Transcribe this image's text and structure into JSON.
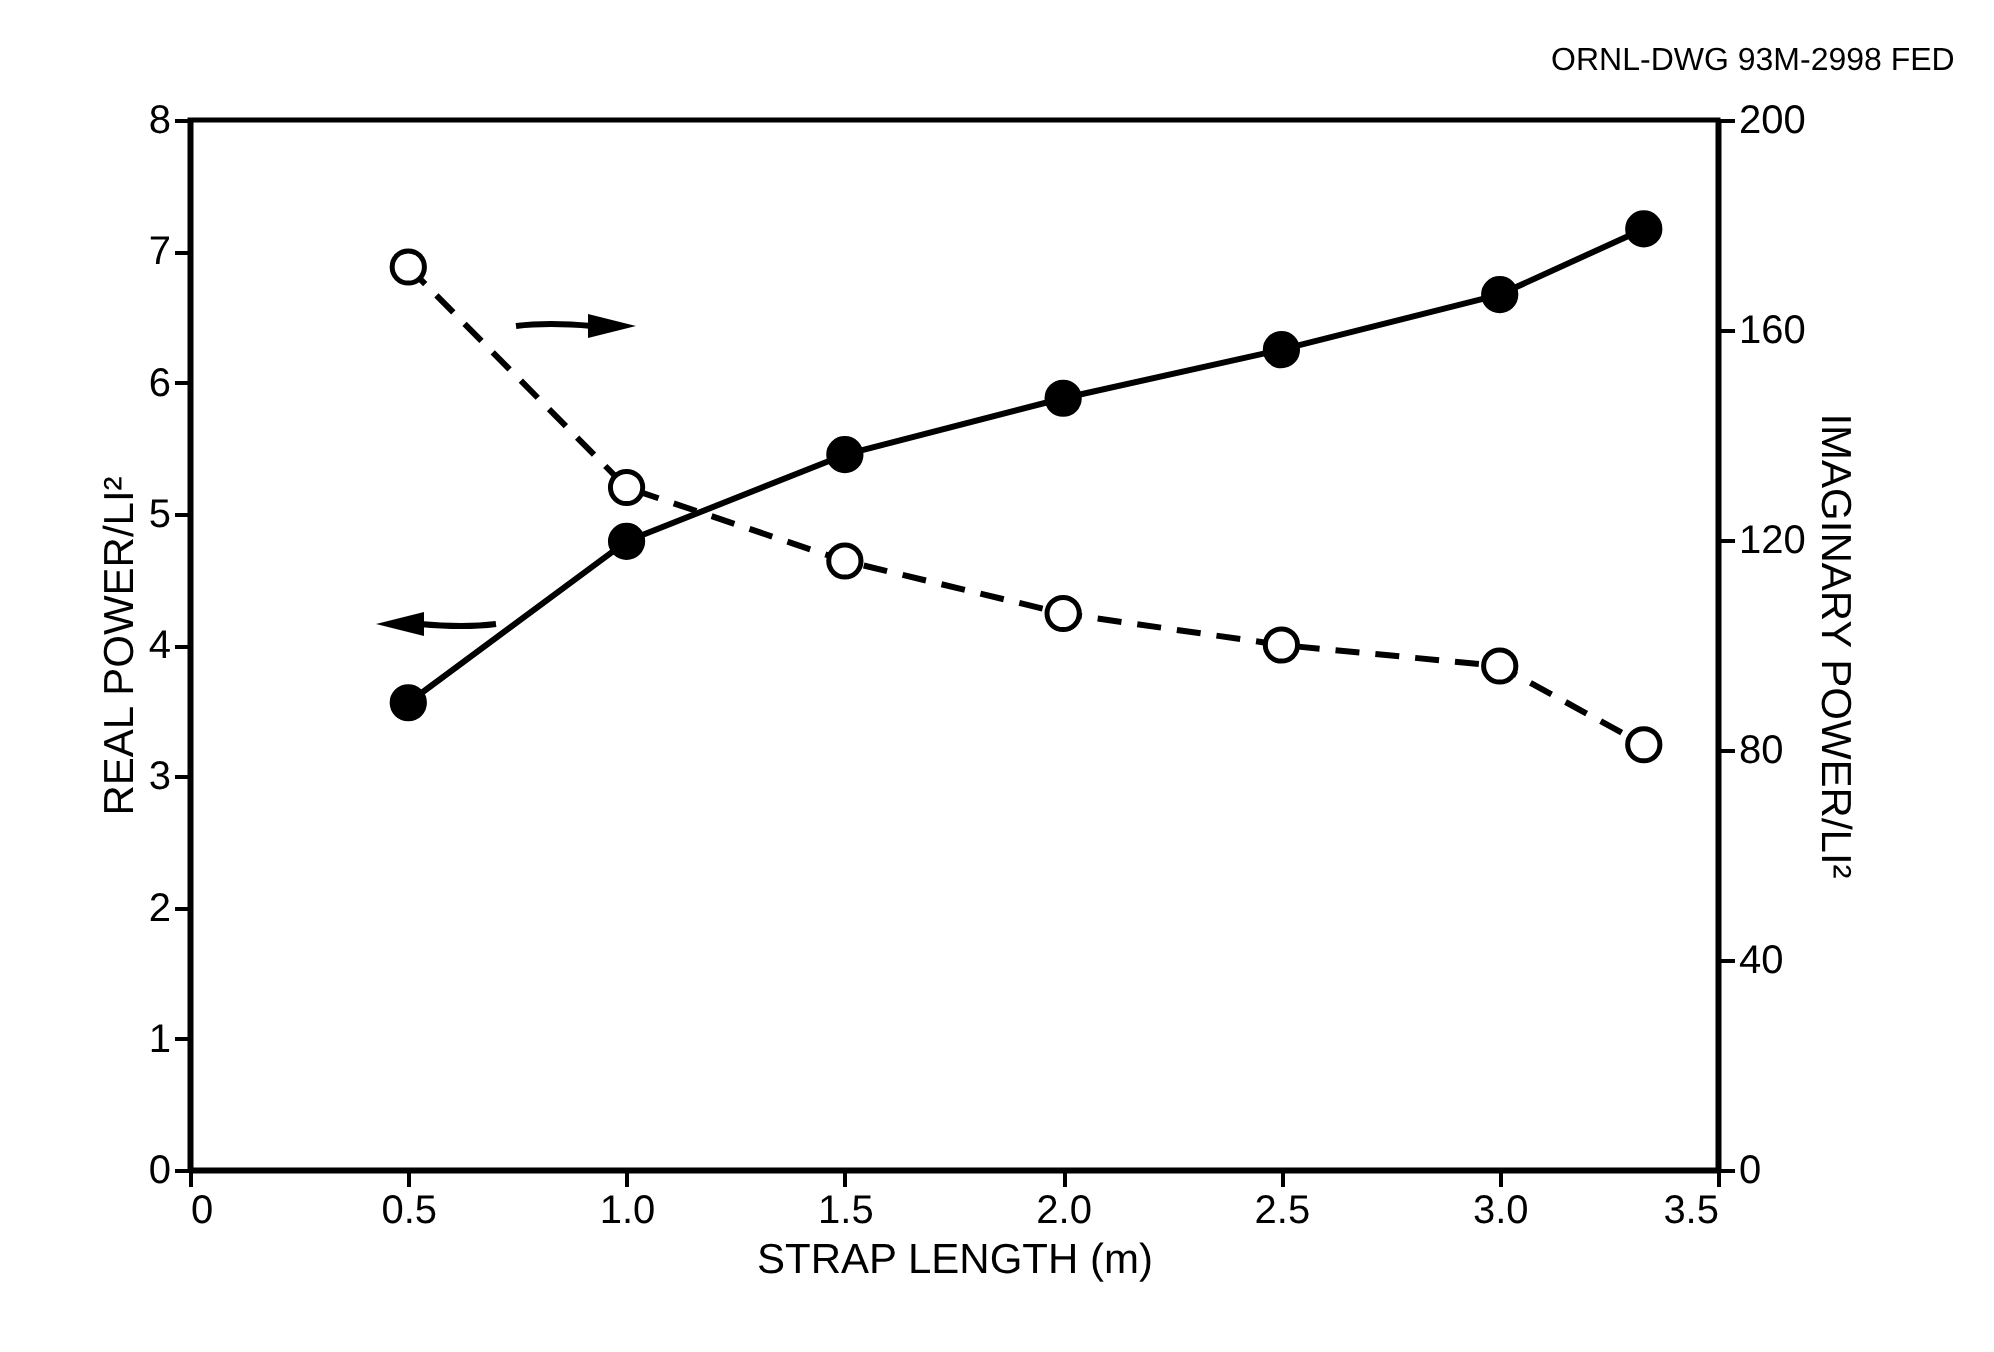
{
  "chart_data": {
    "type": "line",
    "xlabel": "STRAP LENGTH (m)",
    "ylabel": "REAL POWER/LI²",
    "y2label": "IMAGINARY POWER/LI²",
    "x": [
      0.5,
      1.0,
      1.5,
      2.0,
      2.5,
      3.0,
      3.33
    ],
    "series": [
      {
        "color": "#000000",
        "line_style": "solid",
        "values": [
          3.56,
          4.79,
          5.45,
          5.88,
          6.25,
          6.67,
          7.17
        ]
      },
      {
        "color": "#000000",
        "line_style": "dashed",
        "axis": "y2",
        "values": [
          172,
          130,
          116,
          106,
          100,
          96,
          81
        ]
      }
    ],
    "marker": "circle",
    "xlim": [
      0,
      3.5
    ],
    "xticks": [
      0,
      0.5,
      {
        "value": 1,
        "label": "1.0"
      },
      1.5,
      {
        "value": 2,
        "label": "2.0"
      },
      2.5,
      {
        "value": 3,
        "label": "3.0"
      },
      3.5
    ],
    "ylim": [
      0,
      8
    ],
    "yticks": [
      0,
      1,
      2,
      3,
      4,
      5,
      6,
      7,
      8
    ],
    "y2lim": [
      0,
      200
    ],
    "y2ticks": [
      0,
      40,
      80,
      120,
      160,
      200
    ],
    "grid": false,
    "annotations": [
      "ORNL-DWG 93M-2998 FED"
    ]
  }
}
